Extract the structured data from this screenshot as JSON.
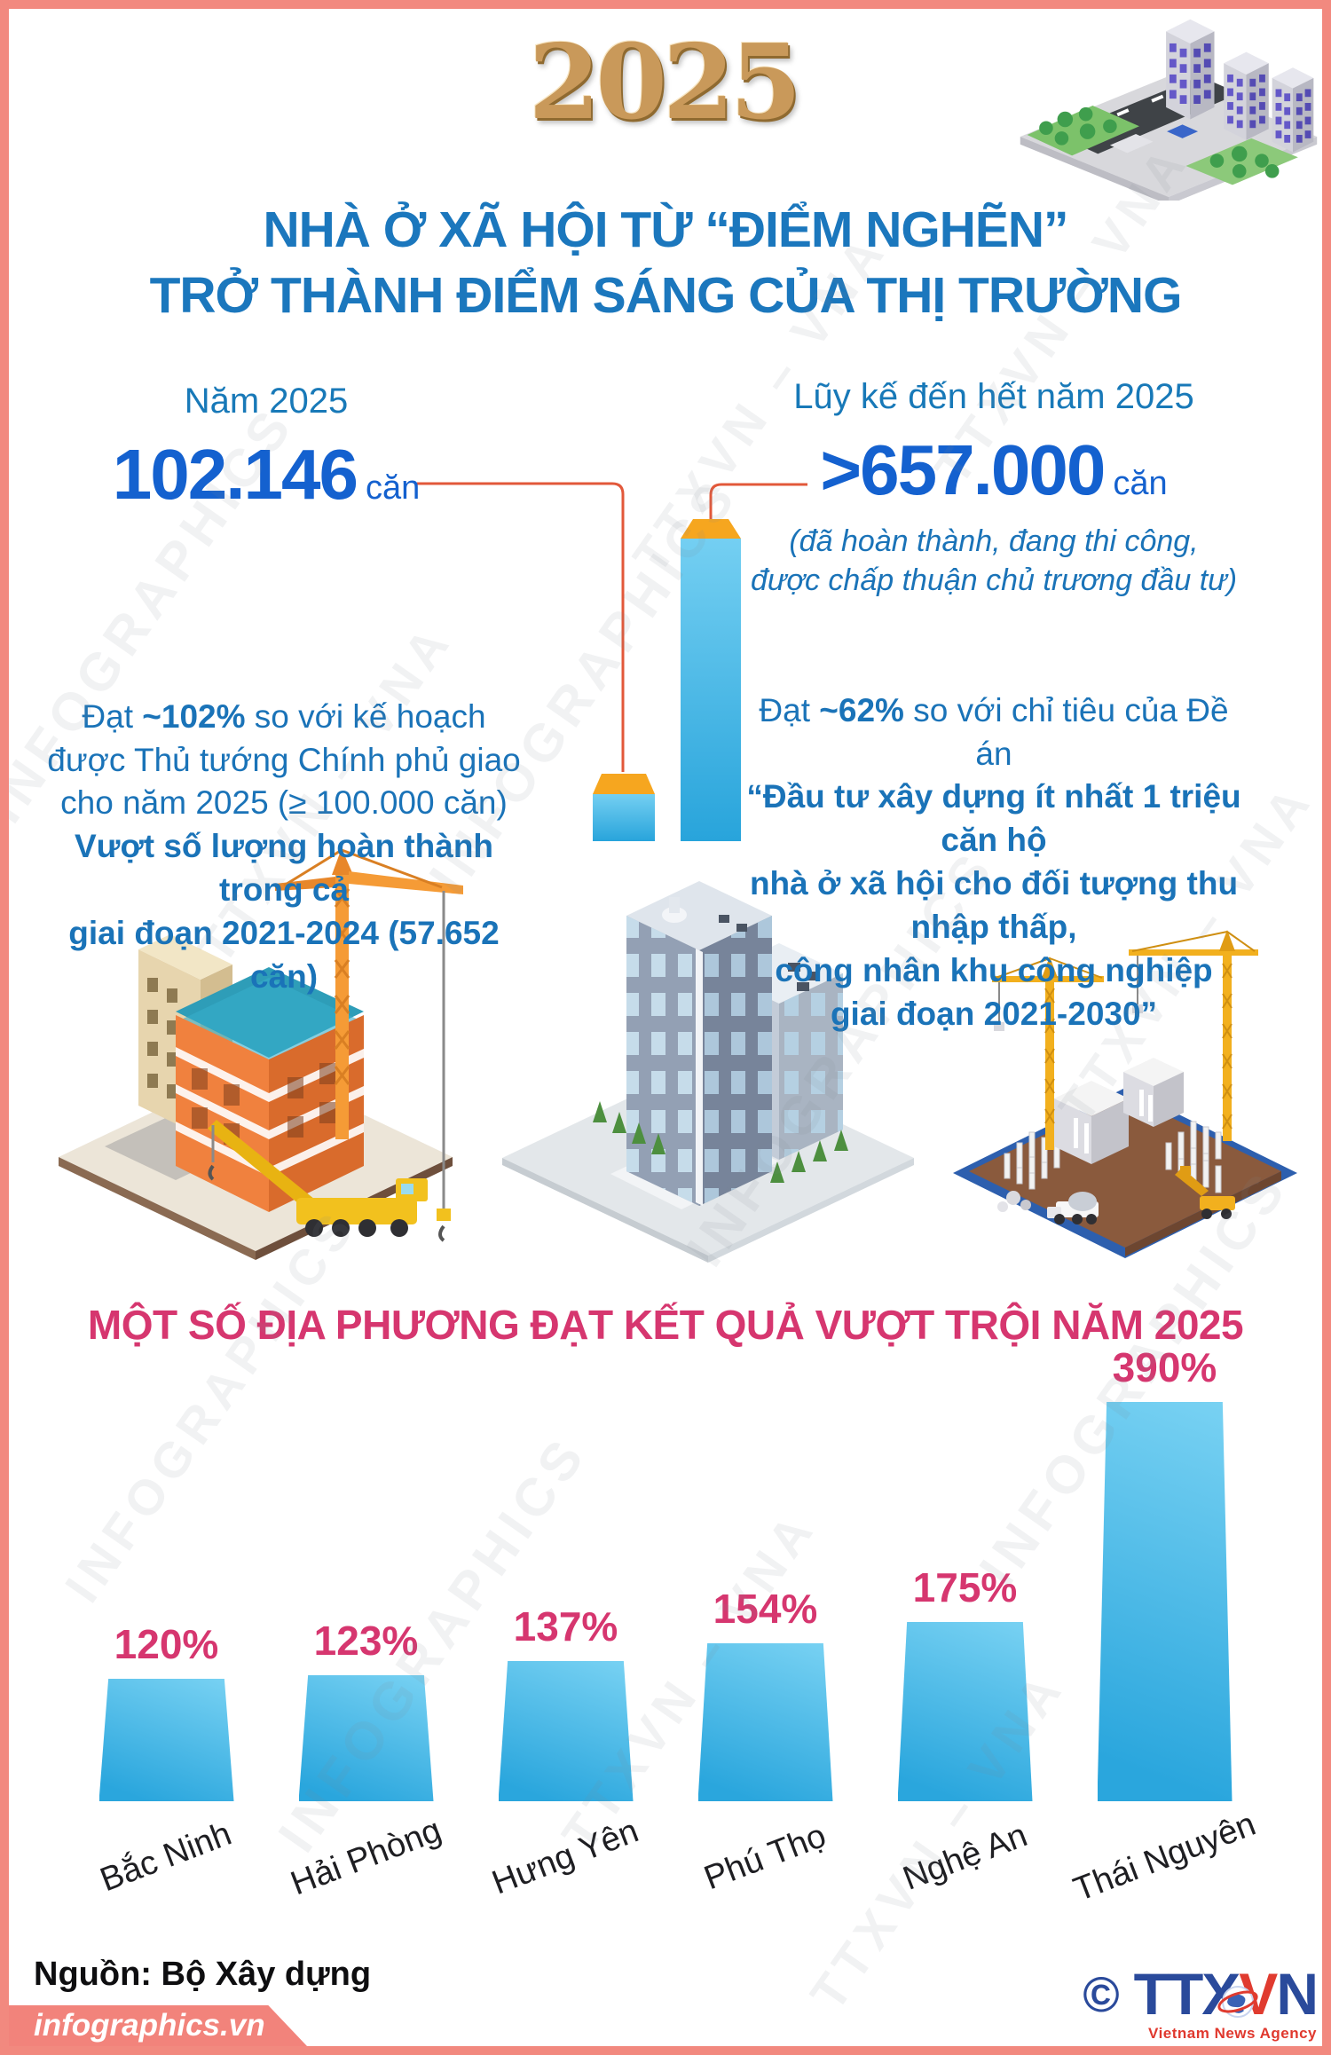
{
  "header": {
    "year_3d": "2025",
    "title_line1": "NHÀ Ở XÃ HỘI TỪ “ĐIỂM NGHẼN”",
    "title_line2": "TRỞ THÀNH ĐIỂM SÁNG CỦA THỊ TRƯỜNG",
    "title_color": "#1b77bd"
  },
  "stats": {
    "left": {
      "label": "Năm 2025",
      "value": "102.146",
      "unit": "căn",
      "desc_prefix": "Đạt ",
      "desc_strong": "~102%",
      "desc_rest_lines": [
        " so với kế hoạch",
        "được Thủ tướng Chính phủ giao",
        "cho năm 2025 (≥ 100.000 căn)"
      ],
      "desc_bold_lines": [
        "Vượt số lượng hoàn thành trong cả",
        "giai đoạn 2021-2024 (57.652 căn)"
      ]
    },
    "right": {
      "label": "Lũy kế đến hết năm 2025",
      "value": ">657.000",
      "unit": "căn",
      "note_lines": [
        "(đã hoàn thành, đang thi công,",
        "được chấp thuận chủ trương đầu tư)"
      ],
      "desc_prefix": "Đạt ",
      "desc_strong": "~62%",
      "desc_rest": " so với chỉ tiêu của Đề án",
      "desc_bold_lines": [
        "“Đầu tư xây dựng ít nhất 1 triệu căn hộ",
        "nhà ở xã hội cho đối tượng thu nhập thấp,",
        "công nhân khu công nghiệp",
        "giai đoạn 2021-2030”"
      ]
    }
  },
  "chart_data": [
    {
      "type": "bar",
      "name": "completion-comparison",
      "categories": [
        "Năm 2025",
        "Lũy kế đến hết năm 2025"
      ],
      "values": [
        102146,
        657000
      ],
      "value_labels": [
        "102.146 căn",
        ">657.000 căn"
      ],
      "bar_color": "#35b1e3",
      "cap_color": "#f6a61f",
      "connector_color": "#e2583a",
      "grid": false,
      "legend": false
    },
    {
      "type": "bar",
      "name": "provinces-exceeding-2025",
      "title": "MỘT SỐ ĐỊA PHƯƠNG ĐẠT KẾT QUẢ VƯỢT TRỘI NĂM 2025",
      "categories": [
        "Bắc Ninh",
        "Hải Phòng",
        "Hưng Yên",
        "Phú Thọ",
        "Nghệ An",
        "Thái Nguyên"
      ],
      "values": [
        120,
        123,
        137,
        154,
        175,
        390
      ],
      "unit": "%",
      "value_labels": [
        "120%",
        "123%",
        "137%",
        "154%",
        "175%",
        "390%"
      ],
      "ylim": [
        0,
        390
      ],
      "grid": false,
      "legend": false,
      "label_color": "#d6366f",
      "bar_gradient": [
        "#79d2f3",
        "#2aa6dd"
      ]
    }
  ],
  "footer": {
    "source": "Nguồn: Bộ Xây dựng",
    "site": "infographics.vn",
    "copyright": "©",
    "logo_blue1": "TTX",
    "logo_red": "V",
    "logo_blue2": "N",
    "agency_sub": "Vietnam News Agency"
  },
  "watermarks": [
    "INFOGRAPHICS",
    "TTXVN – VNA"
  ]
}
